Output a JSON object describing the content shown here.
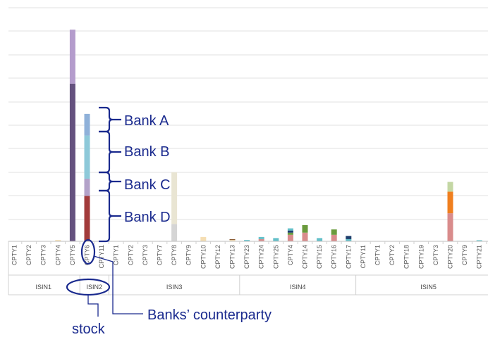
{
  "chart_data": {
    "type": "bar",
    "stacked": true,
    "grid": true,
    "ylim": [
      0,
      100
    ],
    "legend": "none",
    "colors": {
      "bank_a": "#8fb1d9",
      "bank_b": "#8ec9d9",
      "bank_c": "#b3a2c9",
      "bank_d": "#a23b3b",
      "purple_dark": "#65527f",
      "purple_light": "#b49ccc",
      "beige": "#f5deb3",
      "grey": "#d5d5d5",
      "grey_light": "#e9e5d3",
      "green": "#6a9a3c",
      "salmon": "#d98c8c",
      "orange": "#f07f1f",
      "sage": "#c4d7a4",
      "blue": "#6fa0cc",
      "navy": "#1f3f6d",
      "teal": "#63c0c9",
      "brown": "#8a5a30"
    },
    "groups": [
      {
        "label": "ISIN1",
        "categories": [
          "CPTY1",
          "CPTY2",
          "CPTY3",
          "CPTY4",
          "CPTY5"
        ]
      },
      {
        "label": "ISIN2",
        "categories": [
          "CPTY6",
          "CPTY11"
        ]
      },
      {
        "label": "ISIN3",
        "categories": [
          "CPTY1",
          "CPTY2",
          "CPTY3",
          "CPTY7",
          "CPTY8",
          "CPTY9",
          "CPTY10",
          "CPTY12",
          "CPTY13"
        ]
      },
      {
        "label": "ISIN4",
        "categories": [
          "CPTY23",
          "CPTY24",
          "CPTY25",
          "CPTY4",
          "CPTY14",
          "CPTY15",
          "CPTY16",
          "CPTY17"
        ]
      },
      {
        "label": "ISIN5",
        "categories": [
          "CPTY11",
          "CPTY1",
          "CPTY2",
          "CPTY18",
          "CPTY19",
          "CPTY3",
          "CPTY20",
          "CPTY9",
          "CPTY21",
          "CPTY22"
        ]
      }
    ],
    "bars": [
      [
        [],
        [],
        [],
        [
          {
            "c": "beige",
            "v": 0.6
          }
        ],
        [
          {
            "c": "purple_dark",
            "v": 73
          },
          {
            "c": "purple_light",
            "v": 25
          }
        ]
      ],
      [
        [
          {
            "c": "bank_d",
            "v": 21
          },
          {
            "c": "bank_c",
            "v": 8
          },
          {
            "c": "bank_b",
            "v": 20
          },
          {
            "c": "bank_a",
            "v": 10
          }
        ],
        []
      ],
      [
        [],
        [],
        [],
        [],
        [
          {
            "c": "grey",
            "v": 8
          },
          {
            "c": "grey_light",
            "v": 24
          }
        ],
        [],
        [
          {
            "c": "beige",
            "v": 2
          }
        ],
        [],
        [
          {
            "c": "beige",
            "v": 0.6
          },
          {
            "c": "brown",
            "v": 0.4
          }
        ]
      ],
      [
        [
          {
            "c": "teal",
            "v": 0.6
          }
        ],
        [
          {
            "c": "salmon",
            "v": 1
          },
          {
            "c": "teal",
            "v": 1
          }
        ],
        [
          {
            "c": "teal",
            "v": 1.5
          }
        ],
        [
          {
            "c": "salmon",
            "v": 3
          },
          {
            "c": "green",
            "v": 1
          },
          {
            "c": "navy",
            "v": 1
          },
          {
            "c": "teal",
            "v": 1
          }
        ],
        [
          {
            "c": "salmon",
            "v": 4
          },
          {
            "c": "green",
            "v": 3.5
          }
        ],
        [
          {
            "c": "teal",
            "v": 1.5
          }
        ],
        [
          {
            "c": "salmon",
            "v": 3
          },
          {
            "c": "green",
            "v": 2.5
          }
        ],
        [
          {
            "c": "teal",
            "v": 1
          },
          {
            "c": "navy",
            "v": 1.5
          }
        ]
      ],
      [
        [],
        [],
        [],
        [],
        [],
        [],
        [
          {
            "c": "salmon",
            "v": 13
          },
          {
            "c": "orange",
            "v": 10
          },
          {
            "c": "sage",
            "v": 4.5
          }
        ],
        [],
        [
          {
            "c": "teal",
            "v": 0.5
          }
        ],
        []
      ]
    ],
    "annotations": {
      "bank_a": "Bank A",
      "bank_b": "Bank B",
      "bank_c": "Bank C",
      "bank_d": "Bank D",
      "counterparty": "Banks’ counterparty",
      "stock": "stock"
    }
  }
}
